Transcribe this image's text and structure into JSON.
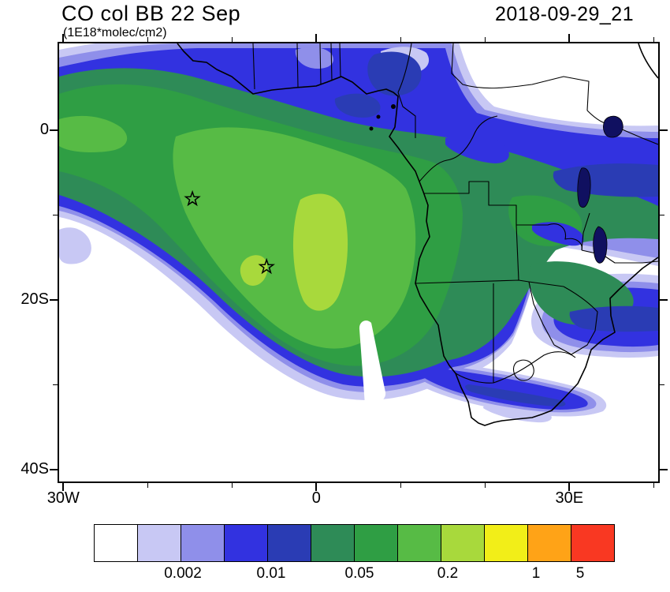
{
  "header": {
    "title": "CO col BB 22 Sep",
    "units": "(1E18*molec/cm2)",
    "datetime": "2018-09-29_21"
  },
  "axes": {
    "y_ticks": [
      {
        "label": "0",
        "lat": 0
      },
      {
        "label": "20S",
        "lat": -20
      },
      {
        "label": "40S",
        "lat": -40
      }
    ],
    "y_minor_lats": [
      -10,
      -30
    ],
    "x_ticks": [
      {
        "label": "30W",
        "lon": -30
      },
      {
        "label": "0",
        "lon": 0
      },
      {
        "label": "30E",
        "lon": 30
      }
    ],
    "x_minor_lons": [
      -20,
      -10,
      10,
      20,
      40
    ]
  },
  "colorbar": {
    "colors": [
      "#ffffff",
      "#c8c8f4",
      "#8f8fea",
      "#3232e0",
      "#2a3cb4",
      "#2e8b57",
      "#2f9e44",
      "#57bb45",
      "#a8d93c",
      "#f2ee18",
      "#ffa317",
      "#f93822"
    ],
    "labels": [
      {
        "text": "0.002",
        "boundary": 2
      },
      {
        "text": "0.01",
        "boundary": 4
      },
      {
        "text": "0.05",
        "boundary": 6
      },
      {
        "text": "0.2",
        "boundary": 8
      },
      {
        "text": "1",
        "boundary": 10
      },
      {
        "text": "5",
        "boundary": 11
      }
    ]
  },
  "chart_data": {
    "type": "heatmap",
    "title": "CO col BB 22 Sep",
    "subtitle_units": "1E18*molec/cm2",
    "valid_time": "2018-09-29_21",
    "projection": "lat-lon map, southern Africa / South Atlantic",
    "lon_range": [
      -30.5,
      40.5
    ],
    "lat_range": [
      -41.6,
      10.2
    ],
    "contour_levels": [
      0.001,
      0.002,
      0.005,
      0.01,
      0.02,
      0.05,
      0.1,
      0.2,
      0.5,
      1,
      5
    ],
    "level_colors": [
      "#ffffff",
      "#c8c8f4",
      "#8f8fea",
      "#3232e0",
      "#2a3cb4",
      "#2e8b57",
      "#2f9e44",
      "#57bb45",
      "#a8d93c",
      "#f2ee18",
      "#ffa317",
      "#f93822"
    ],
    "grid": false,
    "legend_position": "bottom horizontal label bar",
    "markers": [
      {
        "symbol": "star",
        "lon": -14.7,
        "lat": -8.1
      },
      {
        "symbol": "star",
        "lon": -5.9,
        "lat": -16.1
      }
    ],
    "description": "Filled contours of biomass-burning CO column; broad plume (0.05-0.5) sweeping from the Gulf of Guinea southwest over the South Atlantic, core >0.5 near 6W,15S offshore Angola; 0.01-0.05 band extending east across Mozambique to the map edge"
  }
}
